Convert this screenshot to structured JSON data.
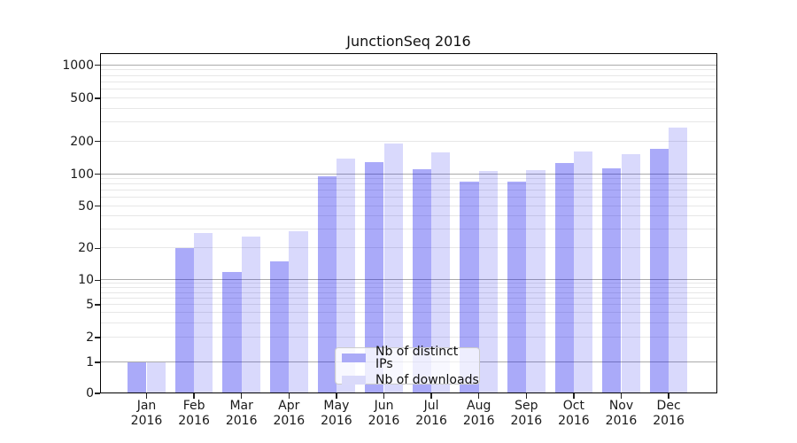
{
  "title": "JunctionSeq 2016",
  "chart_data": {
    "type": "bar",
    "title": "JunctionSeq 2016",
    "categories": [
      "Jan",
      "Feb",
      "Mar",
      "Apr",
      "May",
      "Jun",
      "Jul",
      "Aug",
      "Sep",
      "Oct",
      "Nov",
      "Dec"
    ],
    "year": "2016",
    "series": [
      {
        "name": "Nb of distinct IPs",
        "color": "rgba(0,0,238,0.335)",
        "legend_color": "#aaaaf7",
        "values": [
          1,
          20,
          12,
          15,
          96,
          129,
          111,
          85,
          86,
          128,
          114,
          170
        ]
      },
      {
        "name": "Nb of downloads",
        "color": "rgba(0,0,238,0.148)",
        "legend_color": "#dadafa",
        "values": [
          1,
          28,
          26,
          29,
          140,
          193,
          160,
          107,
          110,
          163,
          152,
          268
        ]
      }
    ],
    "xlabel": "",
    "ylabel": "",
    "yticks": [
      0,
      1,
      2,
      5,
      10,
      20,
      50,
      100,
      200,
      500,
      1000
    ],
    "ylim": [
      0,
      1400
    ],
    "yscale": "symlog",
    "grid": true,
    "legend_position": "lower center"
  }
}
